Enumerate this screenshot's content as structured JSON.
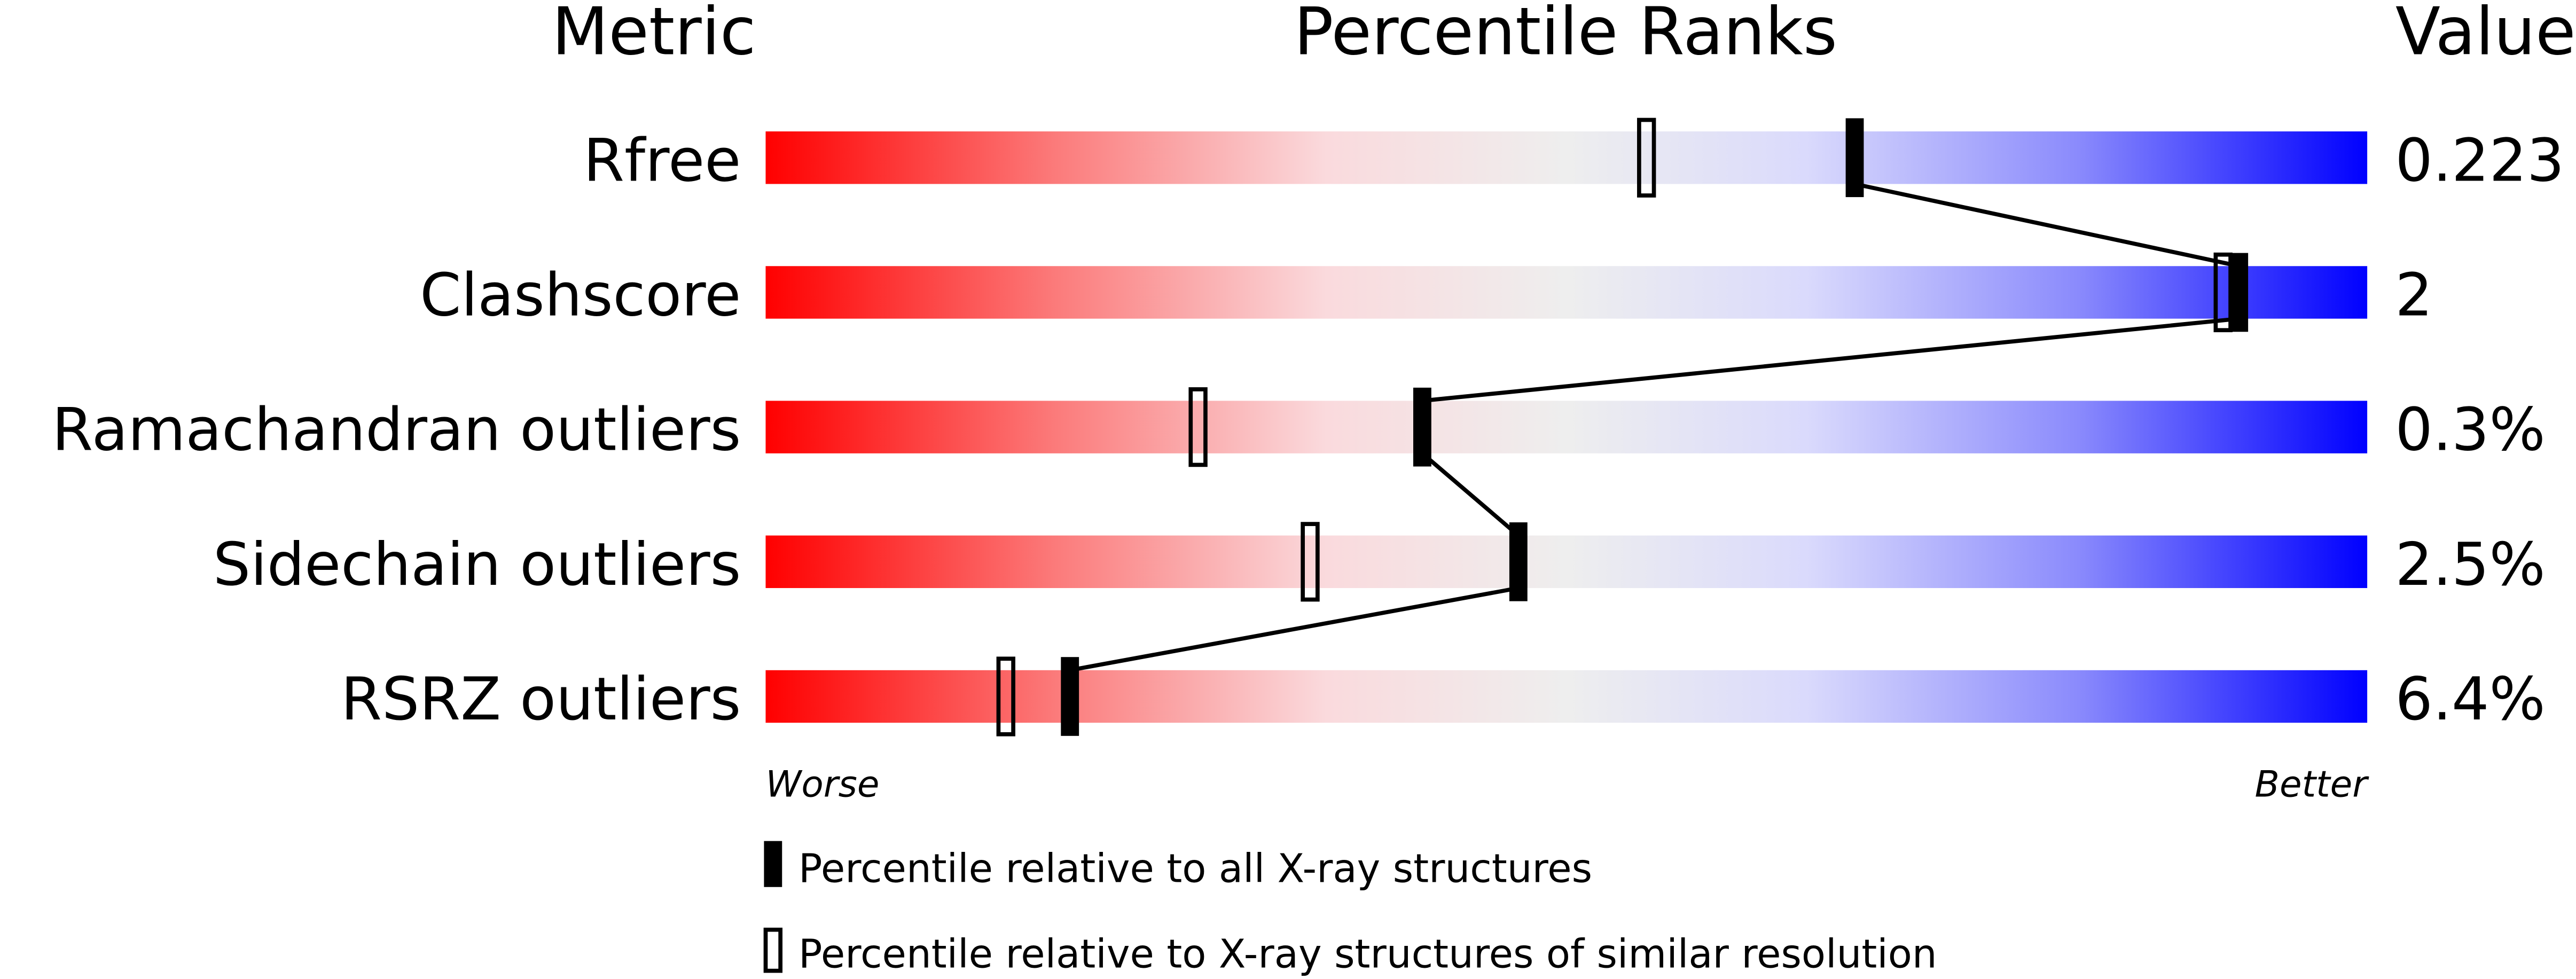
{
  "chart_data": {
    "type": "percentile-slider",
    "headers": {
      "metric": "Metric",
      "ranks": "Percentile Ranks",
      "value": "Value"
    },
    "xlim": [
      0,
      100
    ],
    "axis_labels": {
      "left": "Worse",
      "right": "Better"
    },
    "rows": [
      {
        "metric": "Rfree",
        "value": "0.223",
        "percentile_all": 68,
        "percentile_similar": 55
      },
      {
        "metric": "Clashscore",
        "value": "2",
        "percentile_all": 92,
        "percentile_similar": 91
      },
      {
        "metric": "Ramachandran outliers",
        "value": "0.3%",
        "percentile_all": 41,
        "percentile_similar": 27
      },
      {
        "metric": "Sidechain outliers",
        "value": "2.5%",
        "percentile_all": 47,
        "percentile_similar": 34
      },
      {
        "metric": "RSRZ outliers",
        "value": "6.4%",
        "percentile_all": 19,
        "percentile_similar": 15
      }
    ],
    "legend": {
      "filled": "Percentile relative to all X-ray structures",
      "open": "Percentile relative to X-ray structures of similar resolution"
    },
    "colors": {
      "worse": "#ff0000",
      "mid": "#eeeeee",
      "better": "#0000ff",
      "marker": "#000000"
    }
  }
}
